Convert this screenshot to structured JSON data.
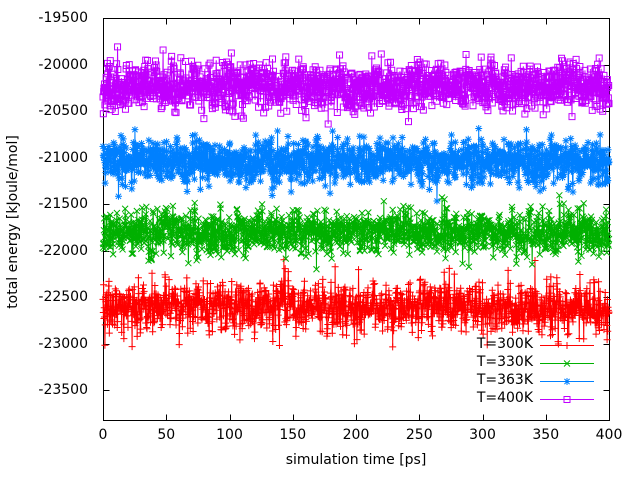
{
  "chart_data": {
    "type": "line",
    "style": "linespoints",
    "title": "",
    "xlabel": "simulation time [ps]",
    "ylabel": "total energy [kJoule/mol]",
    "xlim": [
      0,
      400
    ],
    "ylim": [
      -23822,
      -19500
    ],
    "xticks": [
      0,
      50,
      100,
      150,
      200,
      250,
      300,
      350,
      400
    ],
    "yticks": [
      -23500,
      -23000,
      -22500,
      -22000,
      -21500,
      -21000,
      -20500,
      -20000,
      -19500
    ],
    "grid": false,
    "background": "#ffffff",
    "frame_color": "#000000",
    "text_color": "#000000",
    "legend": {
      "position": "inside-bottom-right"
    },
    "sampling": {
      "n_points": 1601,
      "dt_ps": 0.25
    },
    "series": [
      {
        "name": "T=300K",
        "color": "#ff0000",
        "marker": "plus",
        "mean_kJ_mol": -22610,
        "sigma_kJ_mol": 135,
        "seed": 300
      },
      {
        "name": "T=330K",
        "color": "#00b000",
        "marker": "cross",
        "mean_kJ_mol": -21810,
        "sigma_kJ_mol": 120,
        "seed": 330
      },
      {
        "name": "T=363K",
        "color": "#0080ff",
        "marker": "asterisk",
        "mean_kJ_mol": -21040,
        "sigma_kJ_mol": 120,
        "seed": 363
      },
      {
        "name": "T=400K",
        "color": "#c000ff",
        "marker": "square",
        "mean_kJ_mol": -20230,
        "sigma_kJ_mol": 125,
        "seed": 400
      }
    ]
  }
}
